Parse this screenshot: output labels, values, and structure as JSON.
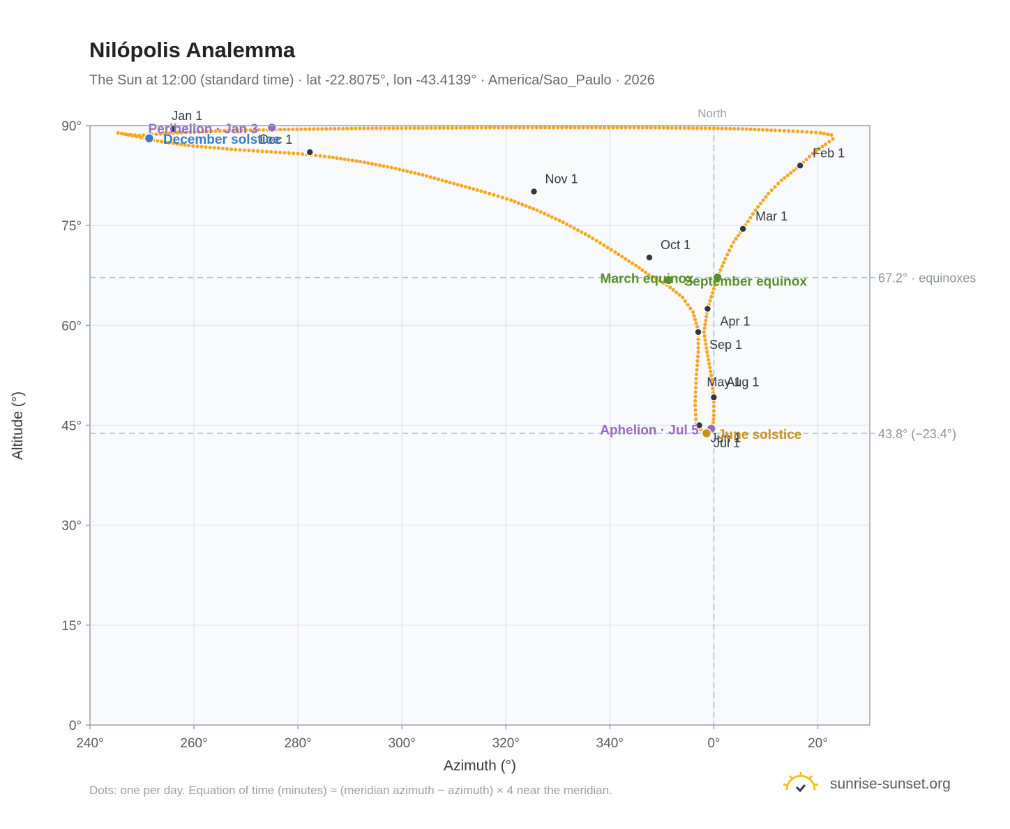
{
  "title": "Nilópolis Analemma",
  "subtitle": "The Sun at 12:00 (standard time) · lat -22.8075°, lon -43.4139° · America/Sao_Paulo · 2026",
  "footnote": "Dots: one per day. Equation of time (minutes) ≈ (meridian azimuth − azimuth) × 4 near the meridian.",
  "brand": "sunrise-sunset.org",
  "colors": {
    "path": "#f5a623",
    "month": "#333840",
    "equinox": "#5a8f2a",
    "perihelion": "#9a6bbf",
    "december_solstice": "#3b7bbf",
    "june_solstice": "#c9901a",
    "grid": "#e3e8ee",
    "plot_bg": "#f8fafc",
    "axis": "#9aa3b1"
  },
  "chart_data": {
    "type": "scatter",
    "xlabel": "Azimuth (°)",
    "ylabel": "Altitude (°)",
    "xlim": [
      -120,
      30
    ],
    "ylim": [
      0,
      90
    ],
    "x_ticks": [
      -120,
      -100,
      -80,
      -60,
      -40,
      -20,
      0,
      20
    ],
    "x_tick_labels": [
      "240°",
      "260°",
      "280°",
      "300°",
      "320°",
      "340°",
      "0°",
      "20°"
    ],
    "y_ticks": [
      0,
      15,
      30,
      45,
      60,
      75,
      90
    ],
    "y_tick_labels": [
      "0°",
      "15°",
      "30°",
      "45°",
      "60°",
      "75°",
      "90°"
    ],
    "grid": true,
    "north_line": {
      "x": 0,
      "label": "North"
    },
    "reference_lines": [
      {
        "y": 67.2,
        "label": "67.2° · equinoxes"
      },
      {
        "y": 43.8,
        "label": "43.8° (−23.4°)"
      }
    ],
    "path_points": [
      [
        -110.5,
        88.5
      ],
      [
        -113.0,
        88.7
      ],
      [
        -114.6,
        88.9
      ],
      [
        -112.6,
        88.6
      ],
      [
        -107.0,
        87.7
      ],
      [
        -101.0,
        87.0
      ],
      [
        -92.0,
        86.4
      ],
      [
        -86.0,
        86.1
      ],
      [
        -80.0,
        85.8
      ],
      [
        -74.0,
        85.3
      ],
      [
        -68.0,
        84.6
      ],
      [
        -62.0,
        83.7
      ],
      [
        -56.0,
        82.6
      ],
      [
        -50.0,
        81.3
      ],
      [
        -44.0,
        80.0
      ],
      [
        -39.0,
        78.8
      ],
      [
        -34.0,
        77.3
      ],
      [
        -29.0,
        75.5
      ],
      [
        -24.0,
        73.4
      ],
      [
        -19.0,
        71.0
      ],
      [
        -15.0,
        69.0
      ],
      [
        -12.5,
        67.6
      ],
      [
        -9.0,
        66.1
      ],
      [
        -6.0,
        64.2
      ],
      [
        -4.0,
        62.0
      ],
      [
        -3.0,
        59.2
      ],
      [
        -3.0,
        56.0
      ],
      [
        -3.4,
        52.0
      ],
      [
        -3.6,
        48.0
      ],
      [
        -3.4,
        45.2
      ],
      [
        -2.5,
        44.4
      ],
      [
        -1.4,
        43.8
      ],
      [
        -0.7,
        43.9
      ],
      [
        -0.2,
        44.8
      ],
      [
        0.0,
        46.5
      ],
      [
        0.0,
        49.2
      ],
      [
        -0.5,
        52.5
      ],
      [
        -1.3,
        56.0
      ],
      [
        -1.9,
        59.0
      ],
      [
        -1.2,
        62.5
      ],
      [
        0.0,
        65.5
      ],
      [
        0.7,
        67.2
      ],
      [
        2.2,
        70.0
      ],
      [
        3.8,
        72.5
      ],
      [
        5.6,
        74.5
      ],
      [
        8.0,
        77.3
      ],
      [
        10.5,
        79.8
      ],
      [
        13.0,
        81.8
      ],
      [
        16.6,
        84.0
      ],
      [
        19.0,
        85.8
      ],
      [
        21.5,
        87.2
      ],
      [
        22.9,
        88.0
      ],
      [
        22.6,
        88.6
      ],
      [
        20.5,
        88.9
      ],
      [
        17.0,
        89.1
      ],
      [
        11.8,
        89.3
      ],
      [
        5.5,
        89.5
      ],
      [
        0.0,
        89.6
      ],
      [
        -14.5,
        89.7
      ],
      [
        -39.0,
        89.7
      ],
      [
        -66.5,
        89.6
      ],
      [
        -85.0,
        89.4
      ],
      [
        -95.0,
        89.2
      ],
      [
        -104.0,
        88.9
      ],
      [
        -110.5,
        88.5
      ]
    ],
    "month_markers": [
      {
        "label": "Jan 1",
        "x": -104.0,
        "y": 89.5
      },
      {
        "label": "Feb 1",
        "x": 16.6,
        "y": 84.0
      },
      {
        "label": "Mar 1",
        "x": 5.6,
        "y": 74.5
      },
      {
        "label": "Apr 1",
        "x": -1.2,
        "y": 62.5
      },
      {
        "label": "May 1",
        "x": 0.0,
        "y": 49.2
      },
      {
        "label": "Jun 1",
        "x": -2.8,
        "y": 45.0
      },
      {
        "label": "Jul 1",
        "x": -1.4,
        "y": 43.8
      },
      {
        "label": "Aug 1",
        "x": 0.0,
        "y": 49.2
      },
      {
        "label": "Sep 1",
        "x": -3.0,
        "y": 59.0
      },
      {
        "label": "Oct 1",
        "x": -12.4,
        "y": 70.2
      },
      {
        "label": "Nov 1",
        "x": -34.6,
        "y": 80.1
      },
      {
        "label": "Dec 1",
        "x": -77.7,
        "y": 86.0
      }
    ],
    "events": [
      {
        "label": "Perihelion · Jan 3",
        "x": -85.0,
        "y": 89.7,
        "color": "#9a6bbf"
      },
      {
        "label": "December solstice",
        "x": -108.6,
        "y": 88.1,
        "color": "#3b7bbf"
      },
      {
        "label": "March equinox",
        "x": -8.7,
        "y": 66.8,
        "color": "#5a8f2a"
      },
      {
        "label": "September equinox",
        "x": 0.7,
        "y": 67.2,
        "color": "#5a8f2a"
      },
      {
        "label": "Aphelion · Jul 5",
        "x": -0.5,
        "y": 44.5,
        "color": "#9a6bbf"
      },
      {
        "label": "June solstice",
        "x": -1.4,
        "y": 43.8,
        "color": "#c9901a"
      }
    ]
  }
}
